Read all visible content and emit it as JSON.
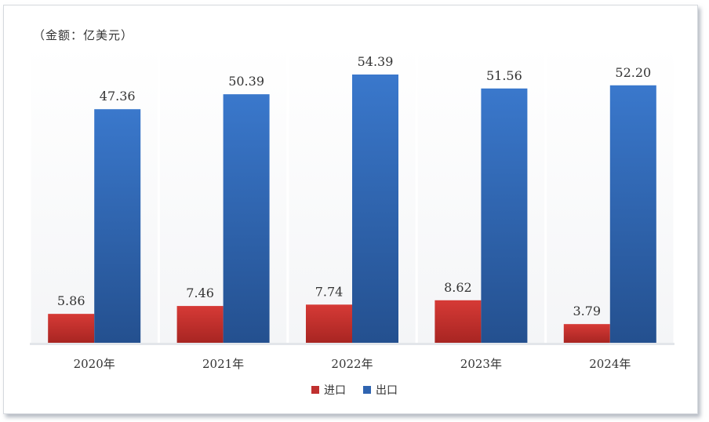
{
  "chart_data": {
    "type": "bar",
    "unit_label": "（金额：亿美元）",
    "categories": [
      "2020年",
      "2021年",
      "2022年",
      "2023年",
      "2024年"
    ],
    "series": [
      {
        "name": "进口",
        "color": "#c0302f",
        "values": [
          5.86,
          7.46,
          7.74,
          8.62,
          3.79
        ],
        "labels": [
          "5.86",
          "7.46",
          "7.74",
          "8.62",
          "3.79"
        ]
      },
      {
        "name": "出口",
        "color": "#2f64b0",
        "values": [
          47.36,
          50.39,
          54.39,
          51.56,
          52.2
        ],
        "labels": [
          "47.36",
          "50.39",
          "54.39",
          "51.56",
          "52.20"
        ]
      }
    ],
    "ylim": [
      0,
      60
    ],
    "grid": false,
    "legend": "bottom"
  }
}
